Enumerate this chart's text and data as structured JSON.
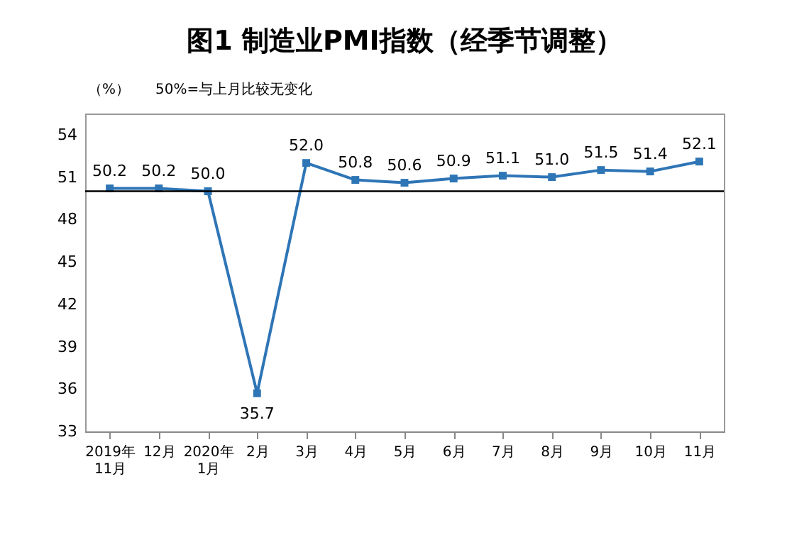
{
  "chart_data": {
    "type": "line",
    "title": "图1 制造业PMI指数（经季节调整）",
    "annotations": [
      "（%）",
      "50%=与上月比较无变化"
    ],
    "categories": [
      "2019年\n11月",
      "12月",
      "2020年\n1月",
      "2月",
      "3月",
      "4月",
      "5月",
      "6月",
      "7月",
      "8月",
      "9月",
      "10月",
      "11月"
    ],
    "series": [
      {
        "color": "#2e75b6",
        "values": [
          50.2,
          50.2,
          50.0,
          35.7,
          52.0,
          50.8,
          50.6,
          50.9,
          51.1,
          51.0,
          51.5,
          51.4,
          52.1
        ]
      }
    ],
    "ylim": [
      33,
      55.5
    ],
    "yticks": [
      33,
      36,
      39,
      42,
      45,
      48,
      51,
      54
    ],
    "ref_lines": [
      {
        "axis": "y",
        "value": 50,
        "color": "#000000"
      }
    ],
    "value_labels": [
      "50.2",
      "50.2",
      "50.0",
      "35.7",
      "52.0",
      "50.8",
      "50.6",
      "50.9",
      "51.1",
      "51.0",
      "51.5",
      "51.4",
      "52.1"
    ],
    "marker": "square",
    "grid": false
  }
}
